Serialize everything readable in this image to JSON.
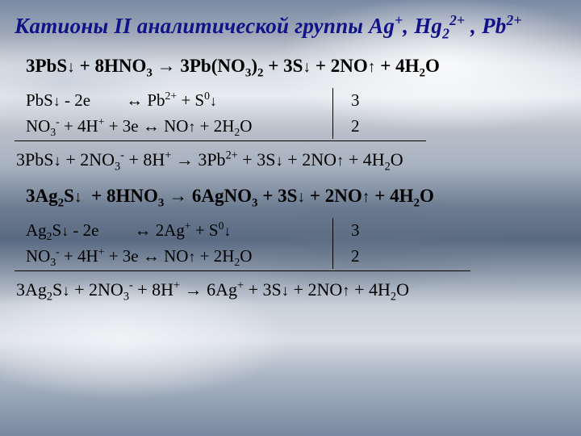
{
  "title": {
    "prefix": "Катионы II аналитической группы ",
    "ions_html": "Ag<sup>+</sup>, Hg<sub>2</sub><sup>2+</sup> , Pb<sup>2+</sup>",
    "color": "#111189",
    "fontsize": 27
  },
  "body_fontsize": 22,
  "arrows": {
    "down": "↓",
    "up": "↑",
    "right": "→",
    "equil": "↔"
  },
  "pb": {
    "main_html": "3PbS<span class='arrow-down'>↓</span> + 8HNO<sub>3</sub> <span class='rarr'>→</span> 3Pb(NO<sub>3</sub>)<sub>2</sub> + 3S<span class='arrow-down'>↓</span> + 2NO<span class='arrow-up'>↑</span> + 4H<sub>2</sub>O",
    "half1_left_html": "PbS<span class='arrow-down'>↓</span> - 2e<span class='gap-lg'></span><span class='lrarr'>↔</span> Pb<sup>2+</sup> + S<sup>0</sup><span class='arrow-down'>↓</span>",
    "half1_mult": "3",
    "half2_left_html": "NO<sub>3</sub><sup>-</sup> + 4H<sup>+</sup> + 3e <span class='lrarr'>↔</span> NO<span class='arrow-up'>↑</span> + 2H<sub>2</sub>O",
    "half2_mult": "2",
    "ionic_html": "3PbS<span class='arrow-down'>↓</span> + 2NO<sub>3</sub><sup>-</sup> + 8H<sup>+</sup> <span class='rarr'>→</span> 3Pb<sup>2+</sup> + 3S<span class='arrow-down'>↓</span> + 2NO<span class='arrow-up'>↑</span> + 4H<sub>2</sub>O"
  },
  "ag": {
    "main_html": "3Ag<sub>2</sub>S<span class='arrow-down'>↓</span>&nbsp;&nbsp;+ 8HNO<sub>3</sub> <span class='rarr'>→</span> 6AgNO<sub>3</sub> + 3S<span class='arrow-down'>↓</span> + 2NO<span class='arrow-up'>↑</span> + 4H<sub>2</sub>O",
    "half1_left_html": "Ag<sub>2</sub>S<span class='arrow-down'>↓</span> - 2e<span class='gap-lg'></span><span class='lrarr'>↔</span> 2Ag<sup>+</sup> + S<sup>0</sup><span class='arrow-down'>↓</span>",
    "half1_mult": "3",
    "half2_left_html": "NO<sub>3</sub><sup>-</sup> + 4H<sup>+</sup> + 3e <span class='lrarr'>↔</span> NO<span class='arrow-up'>↑</span> + 2H<sub>2</sub>O",
    "half2_mult": "2",
    "ionic_html": "3Ag<sub>2</sub>S<span class='arrow-down'>↓</span> + 2NO<sub>3</sub><sup>-</sup> + 8H<sup>+</sup> <span class='rarr'>→</span> 6Ag<sup>+</sup> + 3S<span class='arrow-down'>↓</span> + 2NO<span class='arrow-up'>↑</span> + 4H<sub>2</sub>O"
  }
}
